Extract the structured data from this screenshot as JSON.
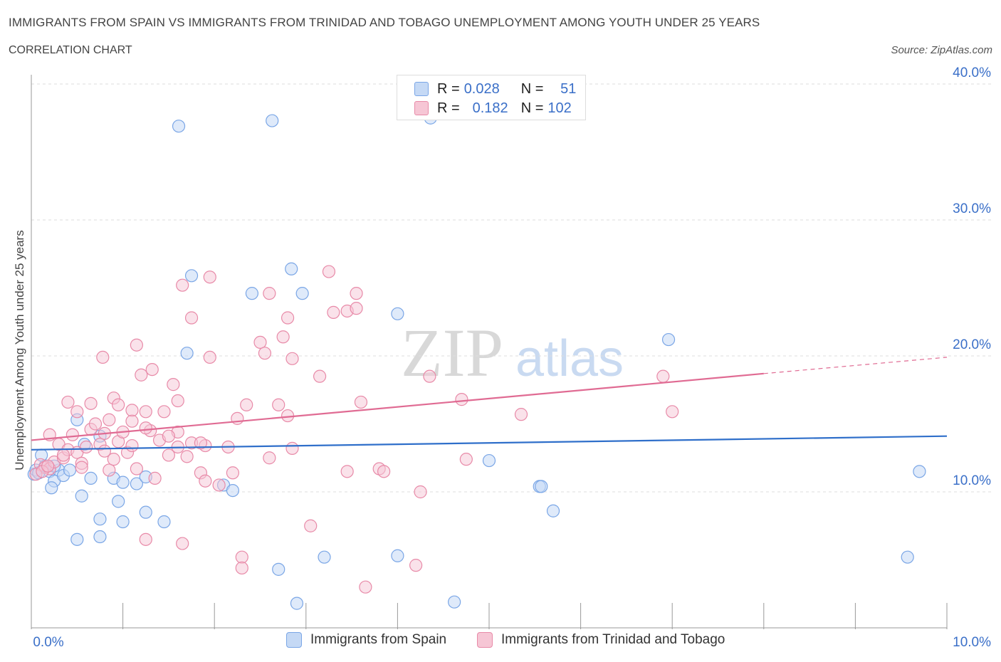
{
  "title": "IMMIGRANTS FROM SPAIN VS IMMIGRANTS FROM TRINIDAD AND TOBAGO UNEMPLOYMENT AMONG YOUTH UNDER 25 YEARS",
  "subtitle": "CORRELATION CHART",
  "source": "Source: ZipAtlas.com",
  "watermark": {
    "zip": "ZIP",
    "atlas": "atlas"
  },
  "legend": {
    "r_label": "R =",
    "n_label": "N =",
    "series": [
      {
        "name": "Immigrants from Spain",
        "r": "0.028",
        "n": "51",
        "color": "#7aa6e6",
        "fill": "#c5d9f5"
      },
      {
        "name": "Immigrants from Trinidad and Tobago",
        "r": "0.182",
        "n": "102",
        "color": "#e88aa8",
        "fill": "#f6c6d5"
      }
    ]
  },
  "chart_data": {
    "type": "scatter",
    "title": "IMMIGRANTS FROM SPAIN VS IMMIGRANTS FROM TRINIDAD AND TOBAGO UNEMPLOYMENT AMONG YOUTH UNDER 25 YEARS",
    "xlabel": "",
    "ylabel": "Unemployment Among Youth under 25 years",
    "xlim": [
      0,
      10
    ],
    "ylim": [
      0,
      40
    ],
    "x_tick_labels": [
      "0.0%",
      "10.0%"
    ],
    "y_ticks": [
      10,
      20,
      30,
      40
    ],
    "y_tick_labels": [
      "10.0%",
      "20.0%",
      "30.0%",
      "40.0%"
    ],
    "grid": true,
    "series": [
      {
        "name": "Immigrants from Spain",
        "color": "#7aa6e6",
        "trend": {
          "x0": 0,
          "y0": 13.1,
          "x1": 10,
          "y1": 14.1,
          "line_color": "#2f6fca"
        },
        "points": [
          [
            1.61,
            36.9
          ],
          [
            2.63,
            37.3
          ],
          [
            4.36,
            37.5
          ],
          [
            1.75,
            25.9
          ],
          [
            2.84,
            26.4
          ],
          [
            2.41,
            24.6
          ],
          [
            2.96,
            24.6
          ],
          [
            4.0,
            23.1
          ],
          [
            1.7,
            20.2
          ],
          [
            6.96,
            21.2
          ],
          [
            0.03,
            11.3
          ],
          [
            0.05,
            11.6
          ],
          [
            0.08,
            11.4
          ],
          [
            0.11,
            12.7
          ],
          [
            0.15,
            11.9
          ],
          [
            0.2,
            11.5
          ],
          [
            0.25,
            10.8
          ],
          [
            0.3,
            11.6
          ],
          [
            0.35,
            11.2
          ],
          [
            0.42,
            11.6
          ],
          [
            0.55,
            9.7
          ],
          [
            0.58,
            13.5
          ],
          [
            0.65,
            11.0
          ],
          [
            0.75,
            14.1
          ],
          [
            0.9,
            11.0
          ],
          [
            1.0,
            10.7
          ],
          [
            1.15,
            10.6
          ],
          [
            1.25,
            11.1
          ],
          [
            0.22,
            10.3
          ],
          [
            0.75,
            8.0
          ],
          [
            0.5,
            6.5
          ],
          [
            0.75,
            6.7
          ],
          [
            1.0,
            7.8
          ],
          [
            1.25,
            8.5
          ],
          [
            1.45,
            7.8
          ],
          [
            0.95,
            9.3
          ],
          [
            2.1,
            10.5
          ],
          [
            2.2,
            10.1
          ],
          [
            5.0,
            12.3
          ],
          [
            5.55,
            10.4
          ],
          [
            5.57,
            10.4
          ],
          [
            5.7,
            8.6
          ],
          [
            9.7,
            11.5
          ],
          [
            9.57,
            5.2
          ],
          [
            4.0,
            5.3
          ],
          [
            3.2,
            5.2
          ],
          [
            2.7,
            4.3
          ],
          [
            2.9,
            1.8
          ],
          [
            4.62,
            1.9
          ],
          [
            0.25,
            11.9
          ],
          [
            0.5,
            15.3
          ]
        ]
      },
      {
        "name": "Immigrants from Trinidad and Tobago",
        "color": "#e88aa8",
        "trend": {
          "x0": 0,
          "y0": 13.8,
          "x1": 8.0,
          "y1": 18.7,
          "x2": 10,
          "y2": 19.9,
          "line_color": "#e06b93"
        },
        "points": [
          [
            1.65,
            25.2
          ],
          [
            1.95,
            25.8
          ],
          [
            3.25,
            26.2
          ],
          [
            2.6,
            24.6
          ],
          [
            3.55,
            24.6
          ],
          [
            3.3,
            23.2
          ],
          [
            3.45,
            23.3
          ],
          [
            3.55,
            23.5
          ],
          [
            1.75,
            22.8
          ],
          [
            2.8,
            22.8
          ],
          [
            2.75,
            21.4
          ],
          [
            2.5,
            21.0
          ],
          [
            1.15,
            20.8
          ],
          [
            2.55,
            20.2
          ],
          [
            1.95,
            19.9
          ],
          [
            2.85,
            19.8
          ],
          [
            0.78,
            19.9
          ],
          [
            1.2,
            18.6
          ],
          [
            1.32,
            19.0
          ],
          [
            3.15,
            18.5
          ],
          [
            4.35,
            18.5
          ],
          [
            6.9,
            18.5
          ],
          [
            1.55,
            17.9
          ],
          [
            1.6,
            16.7
          ],
          [
            0.65,
            16.5
          ],
          [
            0.9,
            16.9
          ],
          [
            1.1,
            16.0
          ],
          [
            1.25,
            15.9
          ],
          [
            1.45,
            15.9
          ],
          [
            2.35,
            16.4
          ],
          [
            2.7,
            16.4
          ],
          [
            3.6,
            16.6
          ],
          [
            4.7,
            16.8
          ],
          [
            5.35,
            15.7
          ],
          [
            7.0,
            15.9
          ],
          [
            0.5,
            15.9
          ],
          [
            0.85,
            15.3
          ],
          [
            1.1,
            15.2
          ],
          [
            2.25,
            15.4
          ],
          [
            2.8,
            15.6
          ],
          [
            0.1,
            12.0
          ],
          [
            0.15,
            11.8
          ],
          [
            0.2,
            11.7
          ],
          [
            0.25,
            12.2
          ],
          [
            0.3,
            13.5
          ],
          [
            0.35,
            12.5
          ],
          [
            0.4,
            13.1
          ],
          [
            0.45,
            14.2
          ],
          [
            0.5,
            12.9
          ],
          [
            0.55,
            12.1
          ],
          [
            0.6,
            13.3
          ],
          [
            0.65,
            14.6
          ],
          [
            0.7,
            15.0
          ],
          [
            0.75,
            13.5
          ],
          [
            0.8,
            14.3
          ],
          [
            0.85,
            11.6
          ],
          [
            0.9,
            12.4
          ],
          [
            0.95,
            13.7
          ],
          [
            1.0,
            14.4
          ],
          [
            1.05,
            12.9
          ],
          [
            1.1,
            13.4
          ],
          [
            1.15,
            11.7
          ],
          [
            1.3,
            14.5
          ],
          [
            1.4,
            13.8
          ],
          [
            1.5,
            12.7
          ],
          [
            1.6,
            13.3
          ],
          [
            1.7,
            12.6
          ],
          [
            1.75,
            13.6
          ],
          [
            1.85,
            11.4
          ],
          [
            1.9,
            10.8
          ],
          [
            2.05,
            10.5
          ],
          [
            2.15,
            13.3
          ],
          [
            2.6,
            12.5
          ],
          [
            2.85,
            13.2
          ],
          [
            3.45,
            11.5
          ],
          [
            3.8,
            11.7
          ],
          [
            3.85,
            11.5
          ],
          [
            4.25,
            10.0
          ],
          [
            4.75,
            12.4
          ],
          [
            0.4,
            16.6
          ],
          [
            0.2,
            14.2
          ],
          [
            1.35,
            11.0
          ],
          [
            1.25,
            6.5
          ],
          [
            1.65,
            6.2
          ],
          [
            2.3,
            5.2
          ],
          [
            2.3,
            4.4
          ],
          [
            3.05,
            7.5
          ],
          [
            3.65,
            3.0
          ],
          [
            4.2,
            4.6
          ],
          [
            1.9,
            13.4
          ],
          [
            2.2,
            11.4
          ],
          [
            1.6,
            14.4
          ],
          [
            0.55,
            11.8
          ],
          [
            0.05,
            11.3
          ],
          [
            0.12,
            11.5
          ],
          [
            0.18,
            11.9
          ],
          [
            1.25,
            14.7
          ],
          [
            0.95,
            16.4
          ],
          [
            0.35,
            12.7
          ],
          [
            1.5,
            14.1
          ],
          [
            0.8,
            13.0
          ],
          [
            1.85,
            13.6
          ]
        ]
      }
    ]
  }
}
